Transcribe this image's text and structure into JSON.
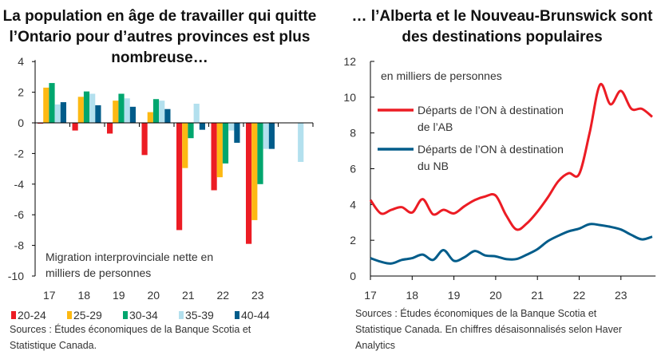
{
  "chart_data": [
    {
      "type": "bar",
      "title": "La population en âge de travailler qui quitte l’Ontario pour d’autres provinces est plus nombreuse…",
      "annotation": [
        "Migration interprovinciale nette en",
        "milliers de personnes"
      ],
      "categories": [
        "17",
        "18",
        "19",
        "20",
        "21",
        "22",
        "23",
        ""
      ],
      "ylim": [
        -10,
        4
      ],
      "yticks": [
        4,
        2,
        0,
        -2,
        -4,
        -6,
        -8,
        -10
      ],
      "legend_position": "bottom",
      "series": [
        {
          "name": "20-24",
          "color": "#ec1c24",
          "values": [
            -0.05,
            -0.5,
            -0.7,
            -2.1,
            -7.0,
            -4.4,
            -7.9,
            null
          ]
        },
        {
          "name": "25-29",
          "color": "#fdb913",
          "values": [
            2.3,
            1.7,
            1.45,
            0.7,
            -2.95,
            -3.55,
            -6.35,
            null
          ]
        },
        {
          "name": "30-34",
          "color": "#00a66e",
          "values": [
            2.6,
            2.05,
            1.9,
            1.55,
            -1.0,
            -2.65,
            -4.0,
            null
          ]
        },
        {
          "name": "35-39",
          "color": "#b3e0ee",
          "values": [
            1.2,
            1.9,
            1.6,
            1.45,
            1.25,
            -0.5,
            -1.7,
            -2.55
          ]
        },
        {
          "name": "40-44",
          "color": "#005c8a",
          "values": [
            1.35,
            1.15,
            1.05,
            0.9,
            -0.45,
            -1.3,
            -1.7,
            null
          ]
        }
      ],
      "source": [
        "Sources : Études économiques de la Banque Scotia et",
        "Statistique Canada."
      ]
    },
    {
      "type": "line",
      "title": "… l’Alberta et le Nouveau-Brunswick sont des destinations populaires",
      "annotation": "en milliers de personnes",
      "xlim": [
        17,
        23.83
      ],
      "ylim": [
        0,
        12
      ],
      "xticks": [
        "17",
        "18",
        "19",
        "20",
        "21",
        "22",
        "23"
      ],
      "yticks": [
        0,
        2,
        4,
        6,
        8,
        10,
        12
      ],
      "legend_position": "top-left",
      "x": [
        17,
        17.25,
        17.5,
        17.75,
        18,
        18.25,
        18.5,
        18.75,
        19,
        19.25,
        19.5,
        19.75,
        20,
        20.25,
        20.5,
        20.75,
        21,
        21.25,
        21.5,
        21.75,
        22,
        22.25,
        22.5,
        22.75,
        23,
        23.25,
        23.5,
        23.75
      ],
      "series": [
        {
          "name": "Départs de l’ON à destination de l’AB",
          "legend_lines": [
            "Départs de l’ON à destination",
            "de l’AB"
          ],
          "color": "#ec1c24",
          "values": [
            4.25,
            3.5,
            3.7,
            3.85,
            3.55,
            4.3,
            3.45,
            3.7,
            3.5,
            3.9,
            4.25,
            4.45,
            4.5,
            3.4,
            2.6,
            2.95,
            3.6,
            4.4,
            5.3,
            5.75,
            5.7,
            8.0,
            10.7,
            9.6,
            10.35,
            9.35,
            9.35,
            8.9
          ]
        },
        {
          "name": "Départs de l’ON à destination du NB",
          "legend_lines": [
            "Départs de l’ON à destination",
            "du NB"
          ],
          "color": "#005c8a",
          "values": [
            1.0,
            0.8,
            0.7,
            0.9,
            1.0,
            1.2,
            0.9,
            1.45,
            0.85,
            1.05,
            1.4,
            1.15,
            1.1,
            0.95,
            0.95,
            1.2,
            1.5,
            1.95,
            2.25,
            2.5,
            2.65,
            2.9,
            2.85,
            2.75,
            2.6,
            2.3,
            2.05,
            2.2
          ]
        }
      ],
      "source": [
        "Sources : Études économiques de la Banque Scotia et",
        "Statistique Canada. En chiffres désaisonnalisés selon Haver",
        "Analytics"
      ]
    }
  ]
}
